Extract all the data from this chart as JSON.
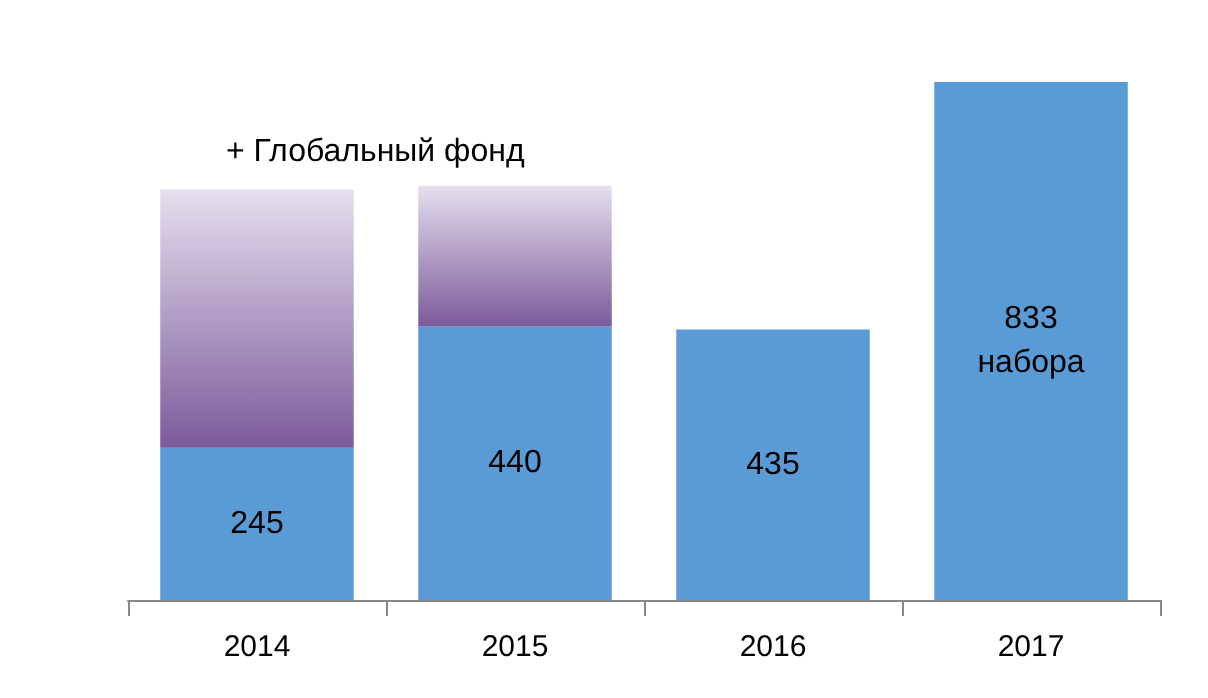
{
  "chart_data": {
    "type": "bar",
    "stacked": true,
    "categories": [
      "2014",
      "2015",
      "2016",
      "2017"
    ],
    "series": [
      {
        "color": "#5b9bd5",
        "values": [
          245,
          440,
          435,
          833
        ],
        "value_labels": [
          "245",
          "440",
          "435",
          "833\nнабора"
        ]
      },
      {
        "color": "#7b5a9b",
        "values": [
          415,
          226,
          null,
          null
        ]
      }
    ],
    "annotations": [
      "+ Глобальный фонд"
    ]
  }
}
